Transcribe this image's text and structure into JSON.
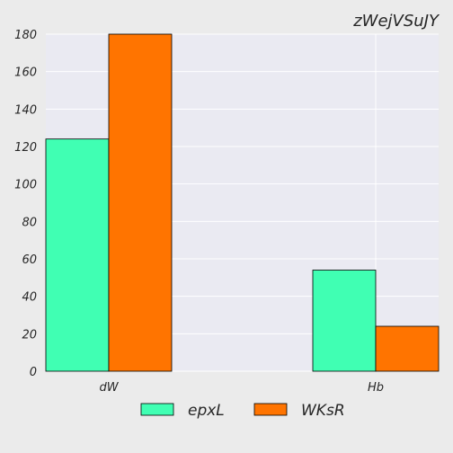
{
  "chart_data": {
    "type": "bar",
    "title": "zWejVSuJY",
    "xlabel": "",
    "ylabel": "",
    "categories": [
      "dW",
      "Hb"
    ],
    "series": [
      {
        "name": "epxL",
        "color": "#40FFB3",
        "values": [
          124,
          54
        ]
      },
      {
        "name": "WKsR",
        "color": "#FF7400",
        "values": [
          180,
          24
        ]
      }
    ],
    "ylim": [
      0,
      180
    ],
    "yticks": [
      0,
      20,
      40,
      60,
      80,
      100,
      120,
      140,
      160,
      180
    ],
    "grid": true,
    "legend_position": "bottom"
  }
}
